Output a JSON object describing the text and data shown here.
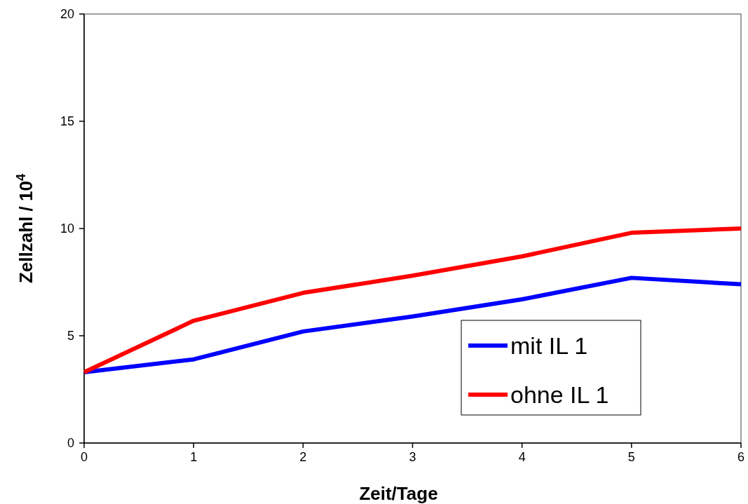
{
  "chart_data": {
    "type": "line",
    "xlabel": "Zeit/Tage",
    "ylabel": "Zellzahl / 10$^{4}$",
    "x": [
      0,
      1,
      2,
      3,
      4,
      5,
      6
    ],
    "series": [
      {
        "name": "mit IL 1",
        "color": "#0000ff",
        "values": [
          3.3,
          3.9,
          5.2,
          5.9,
          6.7,
          7.7,
          7.4
        ]
      },
      {
        "name": "ohne IL 1",
        "color": "#ff0000",
        "values": [
          3.3,
          5.7,
          7.0,
          7.8,
          8.7,
          9.8,
          10.0
        ]
      }
    ],
    "xlim": [
      0,
      6
    ],
    "xticks": [
      0,
      1,
      2,
      3,
      4,
      5,
      6
    ],
    "ylim": [
      0,
      20
    ],
    "yticks": [
      0,
      5,
      10,
      15,
      20
    ],
    "grid": false,
    "legend": "bottom right",
    "marker": "none",
    "line_style": "solid"
  }
}
